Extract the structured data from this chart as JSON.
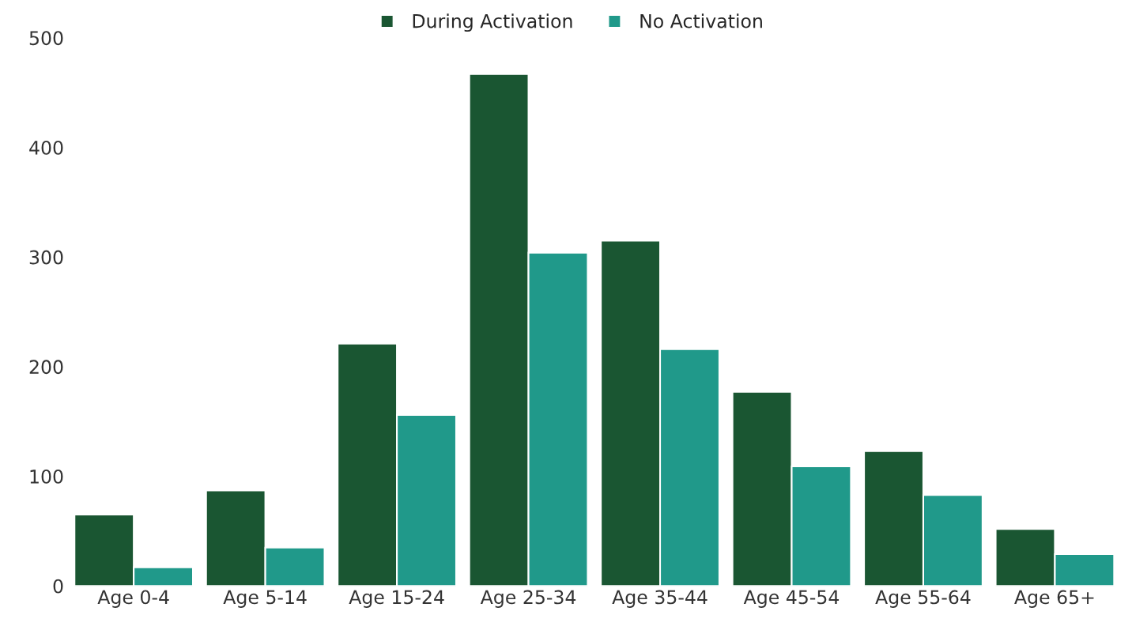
{
  "chart_data": {
    "type": "bar",
    "categories": [
      "Age 0-4",
      "Age 5-14",
      "Age 15-24",
      "Age 25-34",
      "Age 35-44",
      "Age 45-54",
      "Age 55-64",
      "Age 65+"
    ],
    "series": [
      {
        "name": "During Activation",
        "color": "#1a5632",
        "values": [
          65,
          87,
          221,
          467,
          315,
          177,
          123,
          52
        ]
      },
      {
        "name": "No Activation",
        "color": "#20998a",
        "values": [
          17,
          35,
          156,
          304,
          216,
          109,
          83,
          29
        ]
      }
    ],
    "ylim": [
      0,
      500
    ],
    "yticks": [
      0,
      100,
      200,
      300,
      400,
      500
    ],
    "grid": false,
    "legend": "top"
  }
}
